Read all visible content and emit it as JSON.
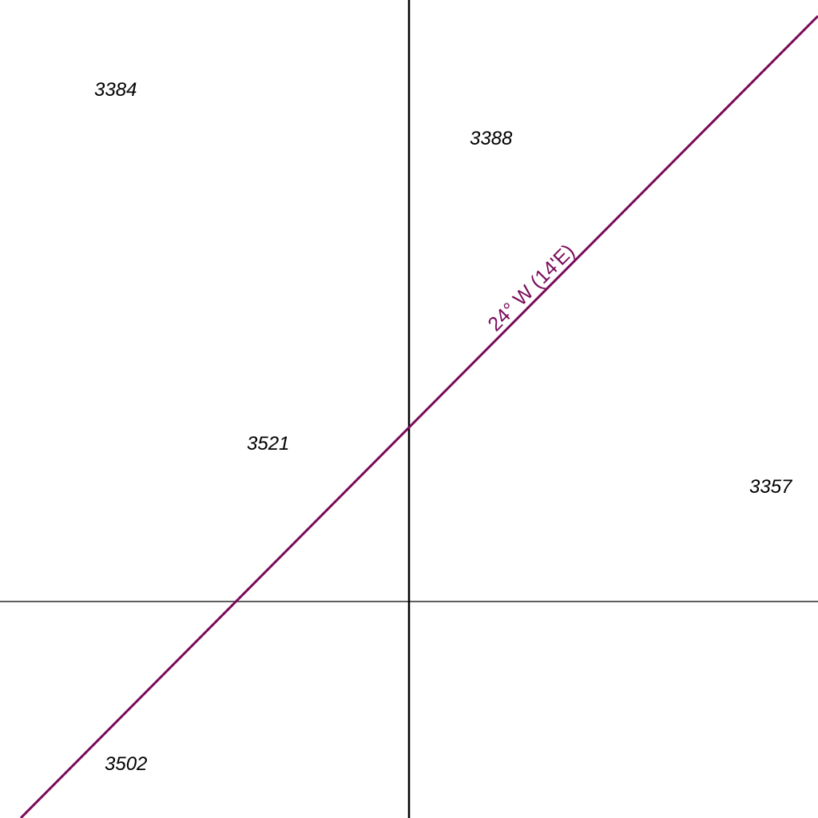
{
  "map": {
    "colors": {
      "background": "#ffffff",
      "grid_line": "#000000",
      "isogonic_line": "#7a0a5a"
    },
    "parcels": [
      {
        "id": "parcel-3384",
        "label": "3384"
      },
      {
        "id": "parcel-3388",
        "label": "3388"
      },
      {
        "id": "parcel-3521",
        "label": "3521"
      },
      {
        "id": "parcel-3357",
        "label": "3357"
      },
      {
        "id": "parcel-3502",
        "label": "3502"
      }
    ],
    "isogonic_line": {
      "label": "24° W (14'E)"
    }
  }
}
